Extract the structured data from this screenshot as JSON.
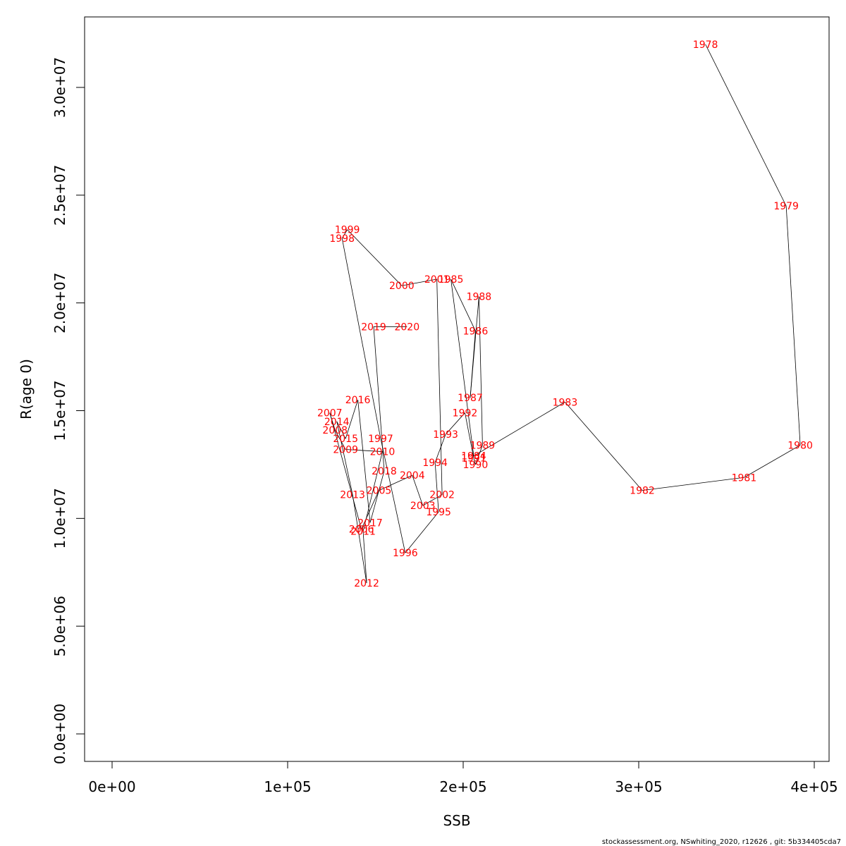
{
  "chart_data": {
    "type": "line",
    "xlabel": "SSB",
    "ylabel": "R(age 0)",
    "xlim": [
      0,
      400000
    ],
    "ylim": [
      0,
      33000000
    ],
    "grid": false,
    "legend": "none",
    "label_color": "#ff0000",
    "line_color": "#000000",
    "x_ticks": [
      0,
      100000,
      200000,
      300000,
      400000
    ],
    "x_tick_labels": [
      "0e+00",
      "1e+05",
      "2e+05",
      "3e+05",
      "4e+05"
    ],
    "y_ticks": [
      0,
      5000000,
      10000000,
      15000000,
      20000000,
      25000000,
      30000000
    ],
    "y_tick_labels": [
      "0.0e+00",
      "5.0e+06",
      "1.0e+07",
      "1.5e+07",
      "2.0e+07",
      "2.5e+07",
      "3.0e+07"
    ],
    "points": [
      {
        "label": "1978",
        "x": 338000,
        "y": 32000000
      },
      {
        "label": "1979",
        "x": 384000,
        "y": 24500000
      },
      {
        "label": "1980",
        "x": 392000,
        "y": 13400000
      },
      {
        "label": "1981",
        "x": 360000,
        "y": 11900000
      },
      {
        "label": "1982",
        "x": 302000,
        "y": 11300000
      },
      {
        "label": "1983",
        "x": 258000,
        "y": 15400000
      },
      {
        "label": "1984",
        "x": 206000,
        "y": 12900000
      },
      {
        "label": "1985",
        "x": 193000,
        "y": 21100000
      },
      {
        "label": "1986",
        "x": 207000,
        "y": 18700000
      },
      {
        "label": "1987",
        "x": 204000,
        "y": 15600000
      },
      {
        "label": "1988",
        "x": 209000,
        "y": 20300000
      },
      {
        "label": "1989",
        "x": 211000,
        "y": 13400000
      },
      {
        "label": "1990",
        "x": 207000,
        "y": 12500000
      },
      {
        "label": "1991",
        "x": 206000,
        "y": 12800000
      },
      {
        "label": "1992",
        "x": 201000,
        "y": 14900000
      },
      {
        "label": "1993",
        "x": 190000,
        "y": 13900000
      },
      {
        "label": "1994",
        "x": 184000,
        "y": 12600000
      },
      {
        "label": "1995",
        "x": 186000,
        "y": 10300000
      },
      {
        "label": "1996",
        "x": 167000,
        "y": 8400000
      },
      {
        "label": "1997",
        "x": 153000,
        "y": 13700000
      },
      {
        "label": "1998",
        "x": 131000,
        "y": 23000000
      },
      {
        "label": "1999",
        "x": 134000,
        "y": 23400000
      },
      {
        "label": "2000",
        "x": 165000,
        "y": 20800000
      },
      {
        "label": "2001",
        "x": 185000,
        "y": 21100000
      },
      {
        "label": "2002",
        "x": 188000,
        "y": 11100000
      },
      {
        "label": "2003",
        "x": 177000,
        "y": 10600000
      },
      {
        "label": "2004",
        "x": 171000,
        "y": 12000000
      },
      {
        "label": "2005",
        "x": 152000,
        "y": 11300000
      },
      {
        "label": "2006",
        "x": 142000,
        "y": 9500000
      },
      {
        "label": "2007",
        "x": 124000,
        "y": 14900000
      },
      {
        "label": "2008",
        "x": 127000,
        "y": 14100000
      },
      {
        "label": "2009",
        "x": 133000,
        "y": 13200000
      },
      {
        "label": "2010",
        "x": 154000,
        "y": 13100000
      },
      {
        "label": "2011",
        "x": 143000,
        "y": 9400000
      },
      {
        "label": "2012",
        "x": 145000,
        "y": 7000000
      },
      {
        "label": "2013",
        "x": 137000,
        "y": 11100000
      },
      {
        "label": "2014",
        "x": 128000,
        "y": 14500000
      },
      {
        "label": "2015",
        "x": 133000,
        "y": 13700000
      },
      {
        "label": "2016",
        "x": 140000,
        "y": 15500000
      },
      {
        "label": "2017",
        "x": 147000,
        "y": 9800000
      },
      {
        "label": "2018",
        "x": 155000,
        "y": 12200000
      },
      {
        "label": "2019",
        "x": 149000,
        "y": 18900000
      },
      {
        "label": "2020",
        "x": 168000,
        "y": 18900000
      }
    ]
  },
  "footer": {
    "text": "stockassessment.org, NSwhiting_2020, r12626 , git: 5b334405cda7"
  }
}
